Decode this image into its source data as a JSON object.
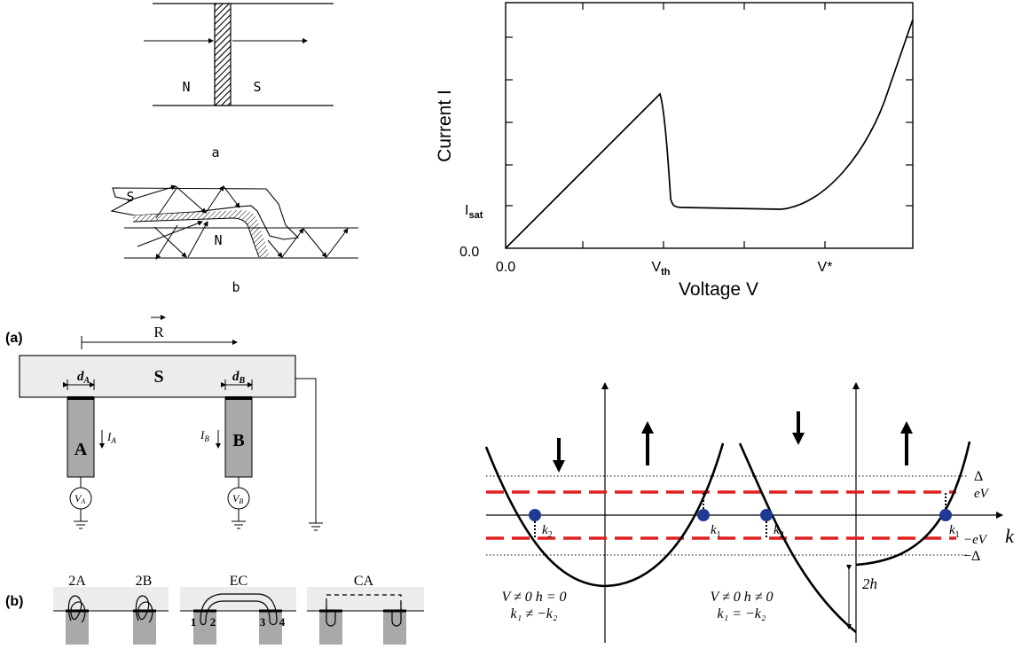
{
  "panel_a": {
    "label_n": "N",
    "label_s": "S",
    "caption": "a"
  },
  "panel_b": {
    "label_s": "S",
    "label_n": "N",
    "caption": "b"
  },
  "iv_chart": {
    "ylabel": "Current I",
    "xlabel": "Voltage V",
    "y_tick_zero": "0.0",
    "y_tick_isat_main": "I",
    "y_tick_isat_sub": "sat",
    "x_tick_zero": "0.0",
    "x_tick_vth_main": "V",
    "x_tick_vth_sub": "th",
    "x_tick_vstar": "V*"
  },
  "device": {
    "panel_label": "(a)",
    "r_vec": "R",
    "s_label": "S",
    "da_main": "d",
    "da_sub": "A",
    "db_main": "d",
    "db_sub": "B",
    "lead_a": "A",
    "lead_b": "B",
    "ia_main": "I",
    "ia_sub": "A",
    "ib_main": "I",
    "ib_sub": "B",
    "va_main": "V",
    "va_sub": "A",
    "vb_main": "V",
    "vb_sub": "B"
  },
  "processes": {
    "panel_label": "(b)",
    "label_2a": "2A",
    "label_2b": "2B",
    "label_ec": "EC",
    "label_ca": "CA",
    "ec_1": "1",
    "ec_2": "2",
    "ec_3": "3",
    "ec_4": "4"
  },
  "bands": {
    "delta": "Δ",
    "ev": "eV",
    "minus_ev": "−eV",
    "minus_delta": "−Δ",
    "k_axis": "k",
    "k2_left": "k",
    "k2_left_sub": "2",
    "k1_left": "k",
    "k1_left_sub": "1",
    "k2_right": "k",
    "k2_right_sub": "2",
    "k1_right": "k",
    "k1_right_sub": "1",
    "two_h": "2h",
    "left_cond_1": "V ≠ 0   h = 0",
    "left_cond_2": "k₁ ≠ −k₂",
    "right_cond_1": "V ≠ 0  h ≠ 0",
    "right_cond_2": "k₁ = −k₂",
    "colors": {
      "dashed": "#e02020",
      "dot": "#1f3a93"
    }
  }
}
